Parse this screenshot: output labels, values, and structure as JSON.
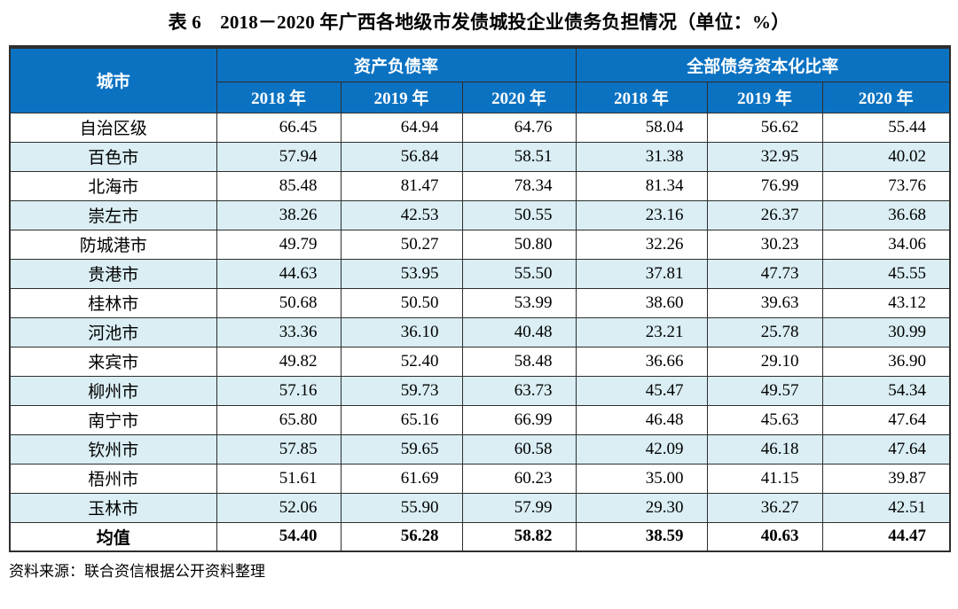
{
  "title": "表 6　2018－2020 年广西各地级市发债城投企业债务负担情况（单位：%）",
  "source_note": "资料来源：联合资信根据公开资料整理",
  "colors": {
    "header_bg": "#0B72C2",
    "stripe_bg": "#DAEEF3",
    "border": "#2E2E2E",
    "header_text": "#FFFFFF"
  },
  "chart_data": {
    "type": "table",
    "title": "表 6　2018－2020 年广西各地级市发债城投企业债务负担情况（单位：%）",
    "unit": "%",
    "column_groups": [
      {
        "label": "城市",
        "colspan": 1
      },
      {
        "label": "资产负债率",
        "colspan": 3
      },
      {
        "label": "全部债务资本化比率",
        "colspan": 3
      }
    ],
    "year_headers": [
      "2018 年",
      "2019 年",
      "2020 年",
      "2018 年",
      "2019 年",
      "2020 年"
    ],
    "rows": [
      {
        "city": "自治区级",
        "values": [
          "66.45",
          "64.94",
          "64.76",
          "58.04",
          "56.62",
          "55.44"
        ],
        "bold": false
      },
      {
        "city": "百色市",
        "values": [
          "57.94",
          "56.84",
          "58.51",
          "31.38",
          "32.95",
          "40.02"
        ],
        "bold": false
      },
      {
        "city": "北海市",
        "values": [
          "85.48",
          "81.47",
          "78.34",
          "81.34",
          "76.99",
          "73.76"
        ],
        "bold": false
      },
      {
        "city": "崇左市",
        "values": [
          "38.26",
          "42.53",
          "50.55",
          "23.16",
          "26.37",
          "36.68"
        ],
        "bold": false
      },
      {
        "city": "防城港市",
        "values": [
          "49.79",
          "50.27",
          "50.80",
          "32.26",
          "30.23",
          "34.06"
        ],
        "bold": false
      },
      {
        "city": "贵港市",
        "values": [
          "44.63",
          "53.95",
          "55.50",
          "37.81",
          "47.73",
          "45.55"
        ],
        "bold": false
      },
      {
        "city": "桂林市",
        "values": [
          "50.68",
          "50.50",
          "53.99",
          "38.60",
          "39.63",
          "43.12"
        ],
        "bold": false
      },
      {
        "city": "河池市",
        "values": [
          "33.36",
          "36.10",
          "40.48",
          "23.21",
          "25.78",
          "30.99"
        ],
        "bold": false
      },
      {
        "city": "来宾市",
        "values": [
          "49.82",
          "52.40",
          "58.48",
          "36.66",
          "29.10",
          "36.90"
        ],
        "bold": false
      },
      {
        "city": "柳州市",
        "values": [
          "57.16",
          "59.73",
          "63.73",
          "45.47",
          "49.57",
          "54.34"
        ],
        "bold": false
      },
      {
        "city": "南宁市",
        "values": [
          "65.80",
          "65.16",
          "66.99",
          "46.48",
          "45.63",
          "47.64"
        ],
        "bold": false
      },
      {
        "city": "钦州市",
        "values": [
          "57.85",
          "59.65",
          "60.58",
          "42.09",
          "46.18",
          "47.64"
        ],
        "bold": false
      },
      {
        "city": "梧州市",
        "values": [
          "51.61",
          "61.69",
          "60.23",
          "35.00",
          "41.15",
          "39.87"
        ],
        "bold": false
      },
      {
        "city": "玉林市",
        "values": [
          "52.06",
          "55.90",
          "57.99",
          "29.30",
          "36.27",
          "42.51"
        ],
        "bold": false
      },
      {
        "city": "均值",
        "values": [
          "54.40",
          "56.28",
          "58.82",
          "38.59",
          "40.63",
          "44.47"
        ],
        "bold": true
      }
    ]
  }
}
